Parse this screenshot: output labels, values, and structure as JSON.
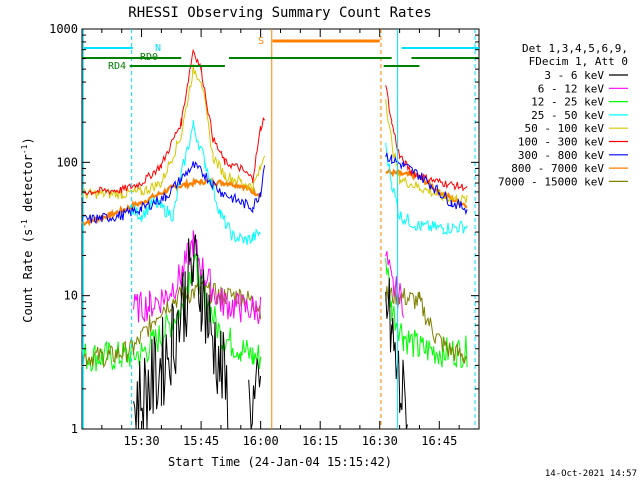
{
  "chart_data": {
    "type": "line",
    "title": "RHESSI Observing Summary Count Rates",
    "xlabel": "Start Time (24-Jan-04 15:15:42)",
    "ylabel_main": "Count Rate (s",
    "ylabel_sup1": "-1",
    "ylabel_mid": " detector",
    "ylabel_sup2": "-1",
    "ylabel_end": ")",
    "ylog": true,
    "ylim": [
      1,
      1000
    ],
    "xlim_min": [
      15,
      115
    ],
    "x_ticks": [
      {
        "min": 30,
        "label": "15:30"
      },
      {
        "min": 45,
        "label": "15:45"
      },
      {
        "min": 60,
        "label": "16:00"
      },
      {
        "min": 75,
        "label": "16:15"
      },
      {
        "min": 90,
        "label": "16:30"
      },
      {
        "min": 105,
        "label": "16:45"
      }
    ],
    "y_ticks": [
      {
        "v": 1,
        "label": "1"
      },
      {
        "v": 10,
        "label": "10"
      },
      {
        "v": 100,
        "label": "100"
      },
      {
        "v": 1000,
        "label": "1000"
      }
    ],
    "legend_header": [
      "Det 1,3,4,5,6,9,",
      "FDecim 1, Att 0"
    ],
    "series": [
      {
        "name": "3 - 6 keV",
        "color": "#000000"
      },
      {
        "name": "6 - 12 keV",
        "color": "#ff00ff"
      },
      {
        "name": "12 - 25 keV",
        "color": "#00ff00"
      },
      {
        "name": "25 - 50 keV",
        "color": "#00ffff"
      },
      {
        "name": "50 - 100 keV",
        "color": "#d8c800"
      },
      {
        "name": "100 - 300 keV",
        "color": "#ff0000"
      },
      {
        "name": "300 - 800 keV",
        "color": "#0000ff"
      },
      {
        "name": "800 - 7000 keV",
        "color": "#ff8000"
      },
      {
        "name": "7000 - 15000 keV",
        "color": "#808000"
      }
    ],
    "flags": [
      {
        "label": "N",
        "color": "#00e0ff"
      },
      {
        "label": "RD0",
        "color": "#008000"
      },
      {
        "label": "RD4",
        "color": "#008000"
      },
      {
        "label": "S",
        "color": "#ff8000"
      }
    ],
    "series_points": {
      "k100_300": [
        [
          15,
          60
        ],
        [
          25,
          62
        ],
        [
          30,
          70
        ],
        [
          35,
          95
        ],
        [
          40,
          200
        ],
        [
          43,
          700
        ],
        [
          45,
          500
        ],
        [
          48,
          150
        ],
        [
          51,
          100
        ],
        [
          55,
          90
        ],
        [
          58,
          75
        ],
        [
          60,
          180
        ],
        [
          61,
          220
        ],
        [
          62,
          null
        ],
        [
          91,
          null
        ],
        [
          91.5,
          380
        ],
        [
          93,
          200
        ],
        [
          95,
          110
        ],
        [
          98,
          85
        ],
        [
          102,
          75
        ],
        [
          106,
          70
        ],
        [
          111,
          65
        ],
        [
          112,
          62
        ]
      ],
      "k50_100": [
        [
          15,
          58
        ],
        [
          25,
          58
        ],
        [
          30,
          60
        ],
        [
          35,
          70
        ],
        [
          40,
          160
        ],
        [
          43,
          500
        ],
        [
          45,
          420
        ],
        [
          48,
          110
        ],
        [
          51,
          80
        ],
        [
          55,
          72
        ],
        [
          58,
          65
        ],
        [
          60,
          90
        ],
        [
          61,
          120
        ],
        [
          62,
          null
        ],
        [
          91,
          null
        ],
        [
          91.5,
          300
        ],
        [
          93,
          140
        ],
        [
          95,
          75
        ],
        [
          100,
          65
        ],
        [
          106,
          55
        ],
        [
          112,
          52
        ]
      ],
      "k300_800": [
        [
          15,
          37
        ],
        [
          20,
          38
        ],
        [
          25,
          40
        ],
        [
          30,
          45
        ],
        [
          36,
          55
        ],
        [
          40,
          75
        ],
        [
          43,
          95
        ],
        [
          46,
          80
        ],
        [
          50,
          60
        ],
        [
          55,
          50
        ],
        [
          58,
          46
        ],
        [
          60,
          60
        ],
        [
          61,
          100
        ],
        [
          62,
          null
        ],
        [
          91,
          null
        ],
        [
          91.5,
          115
        ],
        [
          93,
          105
        ],
        [
          96,
          95
        ],
        [
          100,
          80
        ],
        [
          105,
          60
        ],
        [
          108,
          50
        ],
        [
          112,
          45
        ]
      ],
      "k800_7000": [
        [
          15,
          35
        ],
        [
          22,
          40
        ],
        [
          30,
          50
        ],
        [
          38,
          65
        ],
        [
          45,
          72
        ],
        [
          52,
          70
        ],
        [
          56,
          66
        ],
        [
          58,
          60
        ],
        [
          60,
          58
        ],
        [
          62,
          null
        ],
        [
          91,
          null
        ],
        [
          91.5,
          85
        ],
        [
          95,
          82
        ],
        [
          100,
          78
        ],
        [
          105,
          60
        ],
        [
          110,
          50
        ],
        [
          112,
          48
        ]
      ],
      "k25_50": [
        [
          15,
          999
        ],
        [
          15.5,
          null
        ],
        [
          27,
          45
        ],
        [
          30,
          40
        ],
        [
          33,
          50
        ],
        [
          38,
          40
        ],
        [
          40,
          80
        ],
        [
          43,
          190
        ],
        [
          46,
          100
        ],
        [
          50,
          40
        ],
        [
          53,
          28
        ],
        [
          56,
          26
        ],
        [
          58,
          27
        ],
        [
          60,
          30
        ],
        [
          62,
          null
        ],
        [
          91,
          null
        ],
        [
          91.5,
          130
        ],
        [
          93,
          70
        ],
        [
          95,
          40
        ],
        [
          100,
          33
        ],
        [
          106,
          32
        ],
        [
          112,
          33
        ]
      ],
      "k12_25": [
        [
          15,
          3.5
        ],
        [
          20,
          3.5
        ],
        [
          25,
          3.5
        ],
        [
          30,
          3.7
        ],
        [
          35,
          5
        ],
        [
          40,
          8
        ],
        [
          43,
          18
        ],
        [
          46,
          10
        ],
        [
          50,
          5
        ],
        [
          55,
          4
        ],
        [
          58,
          3.5
        ],
        [
          60,
          3.5
        ],
        [
          62,
          null
        ],
        [
          91,
          null
        ],
        [
          91.5,
          20
        ],
        [
          93,
          8
        ],
        [
          96,
          5
        ],
        [
          100,
          4
        ],
        [
          106,
          3.8
        ],
        [
          112,
          3.8
        ]
      ],
      "k6_12": [
        [
          25,
          null
        ],
        [
          28,
          8
        ],
        [
          32,
          8.5
        ],
        [
          36,
          10
        ],
        [
          40,
          14
        ],
        [
          43,
          25
        ],
        [
          46,
          14
        ],
        [
          50,
          9
        ],
        [
          55,
          8
        ],
        [
          60,
          8
        ],
        [
          62,
          null
        ],
        [
          91,
          null
        ],
        [
          91.5,
          20
        ],
        [
          93,
          12
        ],
        [
          96,
          9
        ],
        [
          100,
          null
        ]
      ],
      "k3_6": [
        [
          27,
          null
        ],
        [
          28,
          1.5
        ],
        [
          32,
          2
        ],
        [
          35,
          3
        ],
        [
          38,
          5
        ],
        [
          41,
          10
        ],
        [
          43,
          16
        ],
        [
          45,
          12
        ],
        [
          47,
          6
        ],
        [
          50,
          3
        ],
        [
          52,
          1.5
        ],
        [
          53,
          null
        ],
        [
          56,
          null
        ],
        [
          57,
          1.5
        ],
        [
          60,
          1.6
        ],
        [
          62,
          null
        ],
        [
          91,
          null
        ],
        [
          91.5,
          10
        ],
        [
          93,
          5
        ],
        [
          95,
          2
        ],
        [
          97,
          1.2
        ],
        [
          98,
          null
        ]
      ],
      "k7000_15000": [
        [
          15,
          3.5
        ],
        [
          22,
          3.5
        ],
        [
          28,
          4
        ],
        [
          32,
          6
        ],
        [
          35,
          8
        ],
        [
          40,
          10
        ],
        [
          45,
          11
        ],
        [
          50,
          10
        ],
        [
          55,
          10
        ],
        [
          58,
          9
        ],
        [
          60,
          8
        ],
        [
          62,
          null
        ],
        [
          91,
          null
        ],
        [
          91.5,
          10
        ],
        [
          95,
          10
        ],
        [
          100,
          9
        ],
        [
          104,
          5
        ],
        [
          107,
          4
        ],
        [
          111,
          3.5
        ],
        [
          112,
          3.5
        ]
      ]
    }
  },
  "footer_date": "14-Oct-2021 14:57"
}
